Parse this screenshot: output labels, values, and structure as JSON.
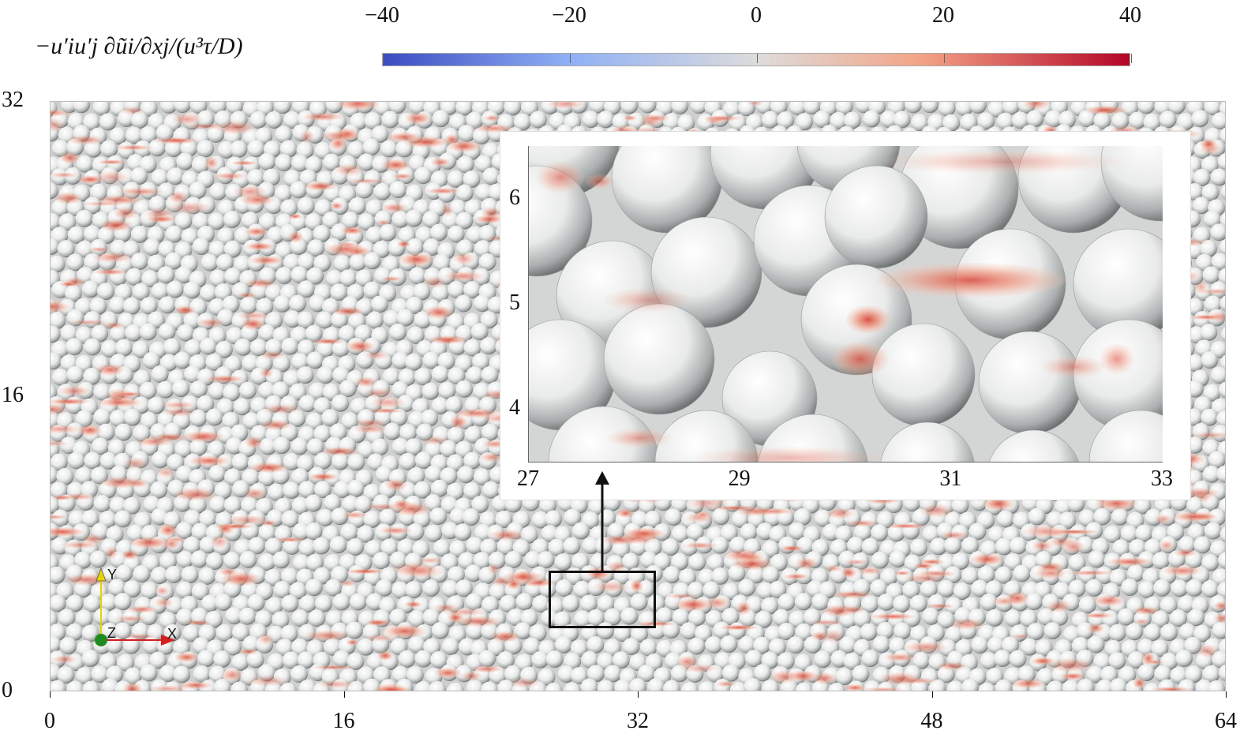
{
  "colorbar": {
    "label": "−u′iu′j ∂ũi/∂xj/(u³τ/D)",
    "ticks": [
      "−40",
      "−20",
      "0",
      "20",
      "40"
    ],
    "tick_values": [
      -40,
      -20,
      0,
      20,
      40
    ],
    "range": [
      -40,
      40
    ],
    "colors": {
      "min": "#3b4cc0",
      "mid": "#dddcdc",
      "max": "#b40426"
    }
  },
  "main_plot": {
    "x_ticks": [
      "0",
      "16",
      "32",
      "48",
      "64"
    ],
    "y_ticks": [
      "0",
      "16",
      "32"
    ],
    "x_range": [
      0,
      64
    ],
    "y_range": [
      0,
      32
    ],
    "zoom_region": {
      "x": [
        27,
        33
      ],
      "y": [
        3.5,
        6.5
      ]
    }
  },
  "inset": {
    "x_ticks": [
      "27",
      "29",
      "31",
      "33"
    ],
    "y_ticks": [
      "4",
      "5",
      "6"
    ],
    "x_range": [
      27,
      33
    ],
    "y_range": [
      3.5,
      6.5
    ]
  },
  "orientation_triad": {
    "axes": [
      "Y",
      "Z",
      "X"
    ],
    "colors": {
      "Y": "#e6d400",
      "Z": "#1f8b1f",
      "X": "#d61f1f"
    }
  }
}
